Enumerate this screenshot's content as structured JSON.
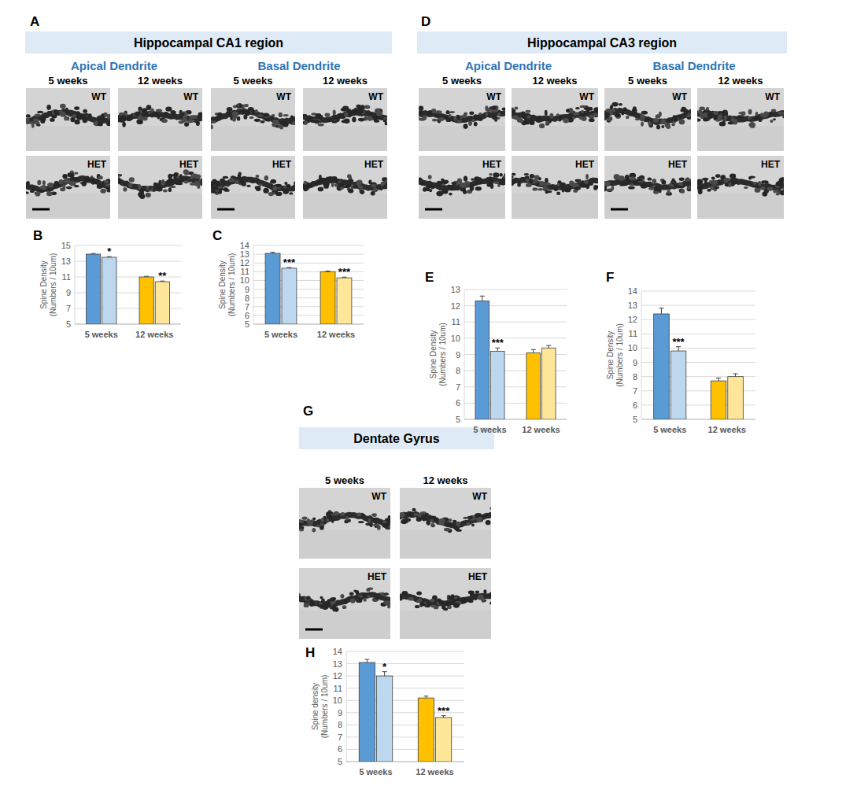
{
  "chart_data": [
    {
      "type": "bar",
      "label": "B",
      "ylabel": [
        "Spine Density",
        "(Numbers / 10um)"
      ],
      "categories": [
        "5 weeks",
        "12 weeks"
      ],
      "series": [
        {
          "colors": [
            "#5b9bd5",
            "#ffc000"
          ],
          "values": [
            13.9,
            11.0
          ],
          "errors": [
            0.08,
            0.08
          ]
        },
        {
          "colors": [
            "#bdd7ee",
            "#ffe699"
          ],
          "values": [
            13.5,
            10.4
          ],
          "errors": [
            0.08,
            0.08
          ],
          "annotations": [
            "*",
            "**"
          ]
        }
      ],
      "ylim": [
        5,
        15
      ],
      "yticks": [
        5,
        7,
        9,
        11,
        13,
        15
      ],
      "grid": true
    },
    {
      "type": "bar",
      "label": "C",
      "ylabel": [
        "Spine Density",
        "(Numbers / 10um)"
      ],
      "categories": [
        "5 weeks",
        "12 weeks"
      ],
      "series": [
        {
          "colors": [
            "#5b9bd5",
            "#ffc000"
          ],
          "values": [
            13.1,
            11.0
          ],
          "errors": [
            0.12,
            0.08
          ]
        },
        {
          "colors": [
            "#bdd7ee",
            "#ffe699"
          ],
          "values": [
            11.4,
            10.3
          ],
          "errors": [
            0.08,
            0.08
          ],
          "annotations": [
            "***",
            "***"
          ]
        }
      ],
      "ylim": [
        5,
        14
      ],
      "yticks": [
        5,
        6,
        7,
        8,
        9,
        10,
        11,
        12,
        13,
        14
      ],
      "grid": true
    },
    {
      "type": "bar",
      "label": "E",
      "ylabel": [
        "Spine Density",
        "(Numbers / 10um)"
      ],
      "categories": [
        "5 weeks",
        "12 weeks"
      ],
      "series": [
        {
          "colors": [
            "#5b9bd5",
            "#ffc000"
          ],
          "values": [
            12.3,
            9.1
          ],
          "errors": [
            0.3,
            0.2
          ]
        },
        {
          "colors": [
            "#bdd7ee",
            "#ffe699"
          ],
          "values": [
            9.2,
            9.4
          ],
          "errors": [
            0.2,
            0.15
          ],
          "annotations": [
            "***",
            null
          ]
        }
      ],
      "ylim": [
        5,
        13
      ],
      "yticks": [
        5,
        6,
        7,
        8,
        9,
        10,
        11,
        12,
        13
      ],
      "grid": true
    },
    {
      "type": "bar",
      "label": "F",
      "ylabel": [
        "Spine Density",
        "(Numbers / 10um)"
      ],
      "categories": [
        "5 weeks",
        "12 weeks"
      ],
      "series": [
        {
          "colors": [
            "#5b9bd5",
            "#ffc000"
          ],
          "values": [
            12.4,
            7.7
          ],
          "errors": [
            0.4,
            0.2
          ]
        },
        {
          "colors": [
            "#bdd7ee",
            "#ffe699"
          ],
          "values": [
            9.8,
            8.0
          ],
          "errors": [
            0.3,
            0.2
          ],
          "annotations": [
            "***",
            null
          ]
        }
      ],
      "ylim": [
        5,
        14
      ],
      "yticks": [
        5,
        6,
        7,
        8,
        9,
        10,
        11,
        12,
        13,
        14
      ],
      "grid": true
    },
    {
      "type": "bar",
      "label": "H",
      "ylabel": [
        "Spine density",
        "(Numbers / 10um)"
      ],
      "categories": [
        "5 weeks",
        "12 weeks"
      ],
      "series": [
        {
          "colors": [
            "#5b9bd5",
            "#ffc000"
          ],
          "values": [
            13.1,
            10.2
          ],
          "errors": [
            0.25,
            0.15
          ]
        },
        {
          "colors": [
            "#bdd7ee",
            "#ffe699"
          ],
          "values": [
            12.0,
            8.6
          ],
          "errors": [
            0.35,
            0.15
          ],
          "annotations": [
            "*",
            "***"
          ]
        }
      ],
      "ylim": [
        5,
        14
      ],
      "yticks": [
        5,
        6,
        7,
        8,
        9,
        10,
        11,
        12,
        13,
        14
      ],
      "grid": true
    }
  ],
  "image_panels": [
    {
      "label": "A",
      "title": "Hippocampal CA1 region",
      "rows": [
        "WT",
        "HET"
      ],
      "groups": [
        {
          "title": "Apical Dendrite",
          "columns": [
            "5 weeks",
            "12 weeks"
          ]
        },
        {
          "title": "Basal Dendrite",
          "columns": [
            "5 weeks",
            "12 weeks"
          ]
        }
      ]
    },
    {
      "label": "D",
      "title": "Hippocampal CA3 region",
      "rows": [
        "WT",
        "HET"
      ],
      "groups": [
        {
          "title": "Apical Dendrite",
          "columns": [
            "5 weeks",
            "12 weeks"
          ]
        },
        {
          "title": "Basal Dendrite",
          "columns": [
            "5 weeks",
            "12 weeks"
          ]
        }
      ]
    },
    {
      "label": "G",
      "title": "Dentate Gyrus",
      "rows": [
        "WT",
        "HET"
      ],
      "groups": [
        {
          "columns": [
            "5 weeks",
            "12 weeks"
          ]
        }
      ]
    }
  ]
}
